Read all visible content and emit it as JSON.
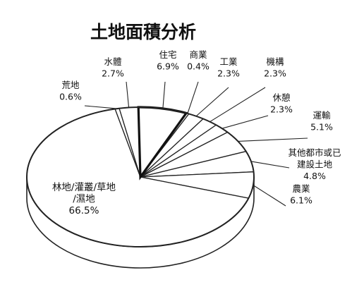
{
  "chart_data": {
    "type": "pie",
    "title": "土地面積分析",
    "slices": [
      {
        "label": "住宅",
        "value": 6.9,
        "value_label": "6.9%"
      },
      {
        "label": "商業",
        "value": 0.4,
        "value_label": "0.4%"
      },
      {
        "label": "工業",
        "value": 2.3,
        "value_label": "2.3%"
      },
      {
        "label": "機構",
        "value": 2.3,
        "value_label": "2.3%"
      },
      {
        "label": "休憩",
        "value": 2.3,
        "value_label": "2.3%"
      },
      {
        "label": "運輸",
        "value": 5.1,
        "value_label": "5.1%"
      },
      {
        "label": "其他都市或已建設土地",
        "value": 4.8,
        "value_label": "4.8%"
      },
      {
        "label": "農業",
        "value": 6.1,
        "value_label": "6.1%"
      },
      {
        "label": "林地/灌叢/草地/濕地",
        "value": 66.5,
        "value_label": "66.5%"
      },
      {
        "label": "荒地",
        "value": 0.6,
        "value_label": "0.6%"
      },
      {
        "label": "水體",
        "value": 2.7,
        "value_label": "2.7%"
      }
    ],
    "style": "3d-tilted, monochrome"
  }
}
